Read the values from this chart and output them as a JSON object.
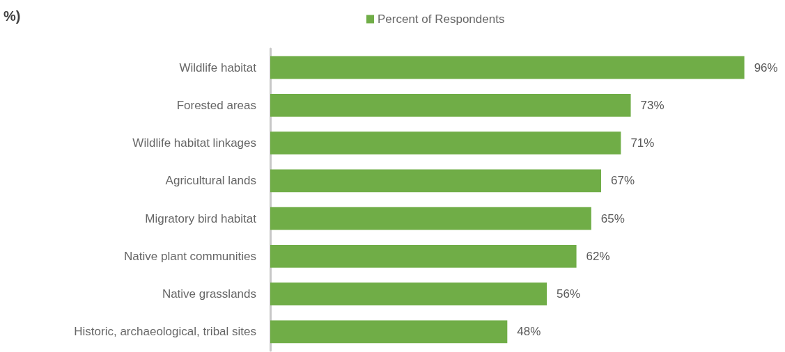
{
  "chart_data": {
    "type": "bar",
    "orientation": "horizontal",
    "title": "%)",
    "categories": [
      "Wildlife habitat",
      "Forested areas",
      "Wildlife habitat linkages",
      "Agricultural lands",
      "Migratory bird habitat",
      "Native plant communities",
      "Native grasslands",
      "Historic, archaeological, tribal sites"
    ],
    "series": [
      {
        "name": "Percent of Respondents",
        "color": "#70ad47",
        "values": [
          96,
          73,
          71,
          67,
          65,
          62,
          56,
          48
        ],
        "value_labels": [
          "96%",
          "73%",
          "71%",
          "67%",
          "65%",
          "62%",
          "56%",
          "48%"
        ]
      }
    ],
    "legend": "top",
    "grid": false
  }
}
